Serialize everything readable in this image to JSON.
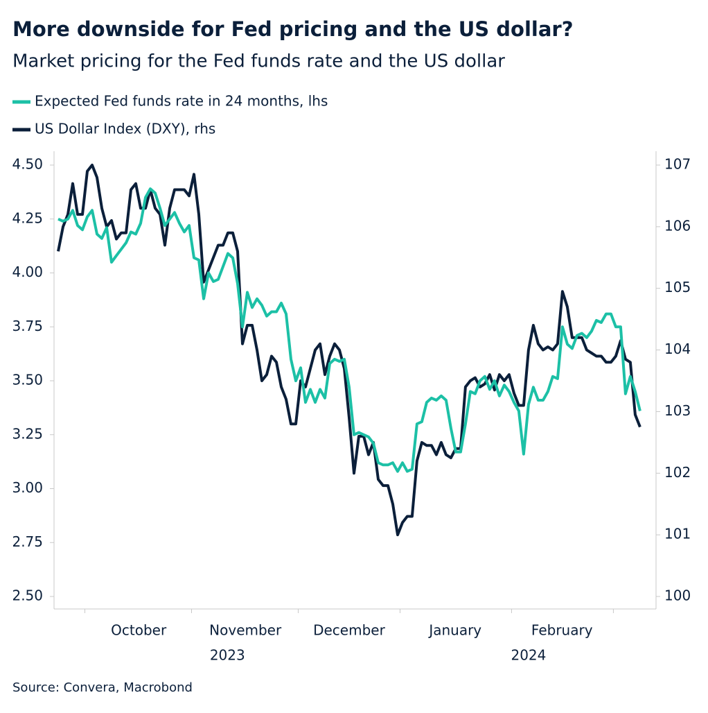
{
  "chart_data": {
    "type": "line",
    "title": "More downside for Fed pricing and the US dollar?",
    "subtitle": "Market pricing for the Fed funds rate and the US dollar",
    "source": "Source: Convera, Macrobond",
    "x": [
      0,
      1,
      2,
      3,
      4,
      5,
      6,
      7,
      8,
      9,
      10,
      11,
      12,
      13,
      14,
      15,
      16,
      17,
      18,
      19,
      20,
      21,
      22,
      23,
      24,
      25,
      26,
      27,
      28,
      29,
      30,
      31,
      32,
      33,
      34,
      35,
      36,
      37,
      38,
      39,
      40,
      41,
      42,
      43,
      44,
      45,
      46,
      47,
      48,
      49,
      50,
      51,
      52,
      53,
      54,
      55,
      56,
      57,
      58,
      59,
      60,
      61,
      62,
      63,
      64,
      65,
      66,
      67,
      68,
      69,
      70,
      71,
      72,
      73,
      74,
      75,
      76,
      77,
      78,
      79,
      80,
      81,
      82,
      83,
      84,
      85,
      86,
      87,
      88,
      89,
      90,
      91,
      92,
      93,
      94,
      95,
      96,
      97,
      98,
      99,
      100,
      101,
      102,
      103,
      104,
      105,
      106,
      107,
      108,
      109,
      110,
      111,
      112,
      113,
      114,
      115,
      116,
      117,
      118,
      119,
      120
    ],
    "series": [
      {
        "name": "Expected Fed funds rate in 24 months, lhs",
        "color": "#1cc0a6",
        "axis": "y",
        "values": [
          4.25,
          4.24,
          4.25,
          4.29,
          4.22,
          4.2,
          4.26,
          4.29,
          4.18,
          4.16,
          4.21,
          4.05,
          4.08,
          4.11,
          4.14,
          4.19,
          4.18,
          4.23,
          4.35,
          4.39,
          4.37,
          4.3,
          4.22,
          4.25,
          4.28,
          4.23,
          4.19,
          4.22,
          4.07,
          4.06,
          3.88,
          4.0,
          3.96,
          3.97,
          4.03,
          4.09,
          4.07,
          3.95,
          3.75,
          3.91,
          3.84,
          3.88,
          3.85,
          3.8,
          3.82,
          3.82,
          3.86,
          3.81,
          3.6,
          3.5,
          3.56,
          3.4,
          3.46,
          3.4,
          3.46,
          3.42,
          3.58,
          3.6,
          3.59,
          3.6,
          3.47,
          3.25,
          3.26,
          3.25,
          3.24,
          3.21,
          3.12,
          3.11,
          3.11,
          3.12,
          3.08,
          3.12,
          3.08,
          3.09,
          3.3,
          3.31,
          3.4,
          3.42,
          3.41,
          3.43,
          3.41,
          3.28,
          3.17,
          3.17,
          3.3,
          3.45,
          3.44,
          3.5,
          3.52,
          3.46,
          3.5,
          3.43,
          3.48,
          3.45,
          3.4,
          3.36,
          3.16,
          3.39,
          3.47,
          3.41,
          3.41,
          3.45,
          3.52,
          3.51,
          3.75,
          3.67,
          3.65,
          3.71,
          3.72,
          3.7,
          3.73,
          3.78,
          3.77,
          3.81,
          3.81,
          3.75,
          3.75,
          3.44,
          3.52,
          3.45,
          3.36
        ]
      },
      {
        "name": "US Dollar Index (DXY), rhs",
        "color": "#0b1f3a",
        "axis": "y2",
        "values": [
          105.6,
          106.0,
          106.2,
          106.7,
          106.2,
          106.2,
          106.9,
          107.0,
          106.8,
          106.3,
          106.0,
          106.1,
          105.8,
          105.9,
          105.9,
          106.6,
          106.7,
          106.3,
          106.3,
          106.6,
          106.3,
          106.2,
          105.7,
          106.3,
          106.6,
          106.6,
          106.6,
          106.5,
          106.85,
          106.2,
          105.1,
          105.3,
          105.5,
          105.7,
          105.7,
          105.9,
          105.9,
          105.6,
          104.1,
          104.4,
          104.4,
          104.0,
          103.5,
          103.6,
          103.9,
          103.8,
          103.4,
          103.2,
          102.8,
          102.8,
          103.5,
          103.4,
          103.7,
          104.0,
          104.1,
          103.6,
          103.9,
          104.1,
          104.0,
          103.7,
          102.9,
          102.0,
          102.6,
          102.6,
          102.3,
          102.5,
          101.9,
          101.8,
          101.8,
          101.5,
          101.0,
          101.2,
          101.3,
          101.3,
          102.2,
          102.5,
          102.45,
          102.45,
          102.3,
          102.5,
          102.3,
          102.25,
          102.4,
          102.4,
          103.4,
          103.5,
          103.55,
          103.4,
          103.45,
          103.6,
          103.35,
          103.6,
          103.5,
          103.6,
          103.3,
          103.1,
          103.1,
          104.0,
          104.4,
          104.1,
          104.0,
          104.05,
          104.0,
          104.1,
          104.95,
          104.7,
          104.2,
          104.2,
          104.2,
          104.0,
          103.95,
          103.9,
          103.9,
          103.8,
          103.8,
          103.9,
          104.15,
          103.85,
          103.8,
          102.95,
          102.75
        ]
      }
    ],
    "xlim": [
      -0.86,
      123.3
    ],
    "xticks": [
      5.5,
      27.5,
      49.5,
      70.5,
      93.5,
      114.5
    ],
    "month_labels": [
      {
        "value": 16.6,
        "label": "October"
      },
      {
        "value": 38.6,
        "label": "November"
      },
      {
        "value": 60,
        "label": "December"
      },
      {
        "value": 81.9,
        "label": "January"
      },
      {
        "value": 103.9,
        "label": "February"
      }
    ],
    "year_labels": [
      {
        "value": 34.9,
        "label": "2023"
      },
      {
        "value": 97,
        "label": "2024"
      }
    ],
    "ylim": [
      2.5,
      4.5
    ],
    "yticks": [
      {
        "value": 2.5,
        "label": "2.50"
      },
      2.75,
      {
        "value": 3,
        "label": "3.00"
      },
      3.25,
      {
        "value": 3.5,
        "label": "3.50"
      },
      3.75,
      {
        "value": 4,
        "label": "4.00"
      },
      4.25,
      {
        "value": 4.5,
        "label": "4.50"
      }
    ],
    "y2lim": [
      100,
      107
    ],
    "y2ticks": [
      100,
      101,
      102,
      103,
      104,
      105,
      106,
      107
    ],
    "grid": false,
    "legend": "top-left"
  }
}
